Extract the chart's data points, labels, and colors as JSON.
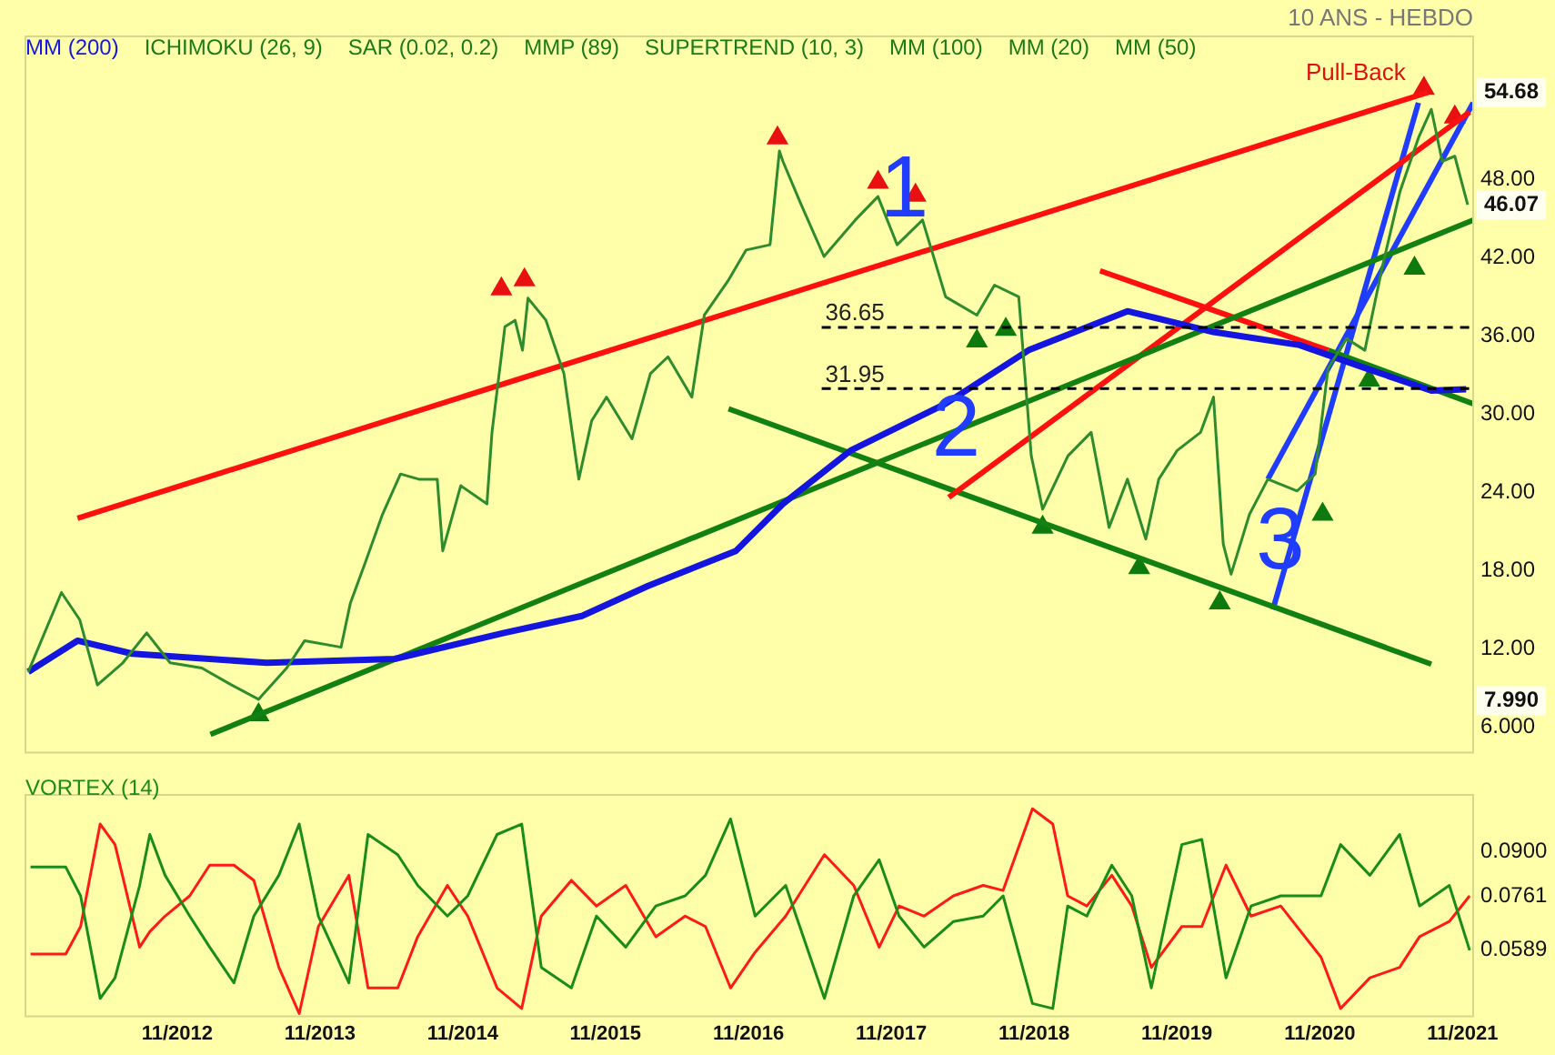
{
  "chart_data": [
    {
      "type": "line",
      "subtitle": "10 ANS - HEBDO",
      "legend": "top left",
      "tick_labels": "y",
      "annotations": [
        "ICHIMOKU (26, 9)",
        "SAR (0.02, 0.2)",
        "MMP (89)",
        "SUPERTREND (10, 3)",
        "MM (100)",
        "MM (20)",
        "MM (50)",
        {
          "text": "1",
          "x": "2017-11-16",
          "y": 42.0
        },
        {
          "text": "2",
          "x": "2018-03-28",
          "y": 23.6
        },
        {
          "text": "3",
          "x": "2020-07-04",
          "y": 15.0
        },
        {
          "text": "Pull-Back",
          "x": "2021-07-25",
          "y": 55.0
        },
        {
          "text": "54.68",
          "y": 54.68
        },
        {
          "text": "46.07",
          "y": 46.07
        },
        {
          "text": "7.990",
          "y": 7.99
        }
      ],
      "x": [
        "2011-10-17",
        "2012-01-10",
        "2012-02-26",
        "2012-04-11",
        "2012-06-15",
        "2012-08-15",
        "2012-10-14",
        "2013-01-03",
        "2013-03-20",
        "2013-05-28",
        "2013-08-08",
        "2013-09-23",
        "2013-12-25",
        "2014-01-18",
        "2014-02-25",
        "2014-04-10",
        "2014-05-26",
        "2014-07-12",
        "2014-08-28",
        "2014-09-11",
        "2014-10-27",
        "2015-01-02",
        "2015-01-15",
        "2015-02-17",
        "2015-03-15",
        "2015-04-03",
        "2015-04-17",
        "2015-06-02",
        "2015-07-18",
        "2015-08-25",
        "2015-09-27",
        "2015-11-04",
        "2016-01-08",
        "2016-02-24",
        "2016-04-09",
        "2016-06-09",
        "2016-07-11",
        "2016-09-11",
        "2016-10-26",
        "2016-12-26",
        "2017-01-19",
        "2017-01-28",
        "2017-03-14",
        "2017-05-13",
        "2017-08-01",
        "2017-09-28",
        "2017-11-16",
        "2018-01-20",
        "2018-03-20",
        "2018-06-08",
        "2018-07-23",
        "2018-09-23",
        "2018-10-25",
        "2018-11-23",
        "2019-01-27",
        "2019-03-27",
        "2019-05-12",
        "2019-06-28",
        "2019-08-14",
        "2019-09-16",
        "2019-11-02",
        "2020-01-01",
        "2020-02-03",
        "2020-02-28",
        "2020-03-19",
        "2020-05-05",
        "2020-06-21",
        "2020-09-04",
        "2020-10-20",
        "2020-11-22",
        "2021-01-08",
        "2021-02-24",
        "2021-04-09",
        "2021-05-25",
        "2021-07-11",
        "2021-08-13",
        "2021-09-10",
        "2021-10-12",
        "2021-11-14"
      ],
      "xlim": [
        "2011-10-10",
        "2021-11-28"
      ],
      "ylim": [
        4,
        59
      ],
      "yticks": [
        {
          "value": 6,
          "label": "6.000"
        },
        {
          "value": 12,
          "label": "12.00"
        },
        {
          "value": 18,
          "label": "18.00"
        },
        {
          "value": 24,
          "label": "24.00"
        },
        {
          "value": 30,
          "label": "30.00"
        },
        {
          "value": 36,
          "label": "36.00"
        },
        {
          "value": 42,
          "label": "42.00"
        },
        {
          "value": 48,
          "label": "48.00"
        }
      ],
      "ref_lines": [
        {
          "axis": "y",
          "value": 36.65,
          "label": "36.65",
          "color": "#000000",
          "line_style": "dashed"
        },
        {
          "axis": "y",
          "value": 31.95,
          "label": "31.95",
          "color": "#000000",
          "line_style": "dashed"
        }
      ],
      "series": [
        {
          "color": "#2e8b2e",
          "values": [
            10.2,
            16.3,
            14.2,
            9.2,
            10.9,
            13.2,
            10.9,
            10.5,
            9.2,
            8.1,
            10.5,
            12.6,
            12.1,
            15.5,
            18.6,
            22.3,
            25.4,
            25.0,
            25.0,
            19.5,
            24.5,
            23.1,
            28.6,
            36.7,
            37.2,
            34.9,
            38.9,
            37.2,
            33.1,
            25.0,
            29.5,
            31.3,
            28.1,
            33.1,
            34.4,
            31.3,
            37.6,
            40.3,
            42.6,
            43.0,
            50.2,
            49.4,
            46.2,
            42.1,
            44.9,
            46.7,
            43.0,
            44.9,
            39.0,
            37.6,
            39.9,
            39.0,
            26.8,
            22.7,
            26.8,
            28.6,
            21.3,
            25.0,
            20.4,
            25.0,
            27.2,
            28.6,
            31.3,
            20.0,
            17.7,
            22.3,
            25.0,
            24.1,
            25.4,
            33.5,
            35.8,
            34.9,
            41.2,
            47.1,
            51.2,
            53.4,
            49.4,
            49.8,
            46.07
          ]
        },
        {
          "name": "MM (200)",
          "color": "#1515e0",
          "x": [
            "2011-10-17",
            "2012-02-20",
            "2012-07-09",
            "2013-06-18",
            "2014-05-11",
            "2015-02-15",
            "2015-09-02",
            "2016-02-18",
            "2016-09-30",
            "2017-01-28",
            "2017-07-20",
            "2018-03-20",
            "2018-10-18",
            "2019-06-28",
            "2020-02-03",
            "2020-09-10",
            "2021-02-28",
            "2021-08-13",
            "2021-11-10"
          ],
          "values": [
            10.2,
            12.6,
            11.6,
            10.9,
            11.2,
            13.2,
            14.5,
            16.8,
            19.5,
            23.1,
            27.2,
            30.8,
            34.9,
            37.9,
            36.3,
            35.3,
            33.5,
            31.8,
            31.9
          ]
        },
        {
          "color": "#ff1010",
          "x": [
            "2012-02-20",
            "2021-08-04"
          ],
          "values": [
            22.0,
            54.7
          ]
        },
        {
          "color": "#138013",
          "x": [
            "2013-01-25",
            "2021-11-28"
          ],
          "values": [
            5.4,
            44.9
          ]
        },
        {
          "color": "#ff1010",
          "x": [
            "2018-03-28",
            "2021-11-19"
          ],
          "values": [
            23.6,
            53.2
          ]
        },
        {
          "color": "#138013",
          "x": [
            "2016-09-11",
            "2021-08-13"
          ],
          "values": [
            30.4,
            10.8
          ]
        },
        {
          "color": "#ff1010",
          "x": [
            "2019-04-19",
            "2020-11-22"
          ],
          "values": [
            41.0,
            34.9
          ]
        },
        {
          "color": "#138013",
          "x": [
            "2020-11-22",
            "2021-11-28"
          ],
          "values": [
            34.9,
            30.8
          ]
        },
        {
          "color": "#1f3cff",
          "x": [
            "2020-07-04",
            "2021-07-11"
          ],
          "values": [
            15.0,
            53.9
          ]
        },
        {
          "color": "#1f3cff",
          "x": [
            "2020-06-21",
            "2021-11-28"
          ],
          "values": [
            25.0,
            53.9
          ]
        },
        {
          "type": "scatter",
          "marker": "triangle",
          "color": "#e81010",
          "x": [
            "2015-02-08",
            "2015-04-08",
            "2017-01-14",
            "2017-09-28",
            "2018-01-02",
            "2021-07-25",
            "2021-10-12"
          ],
          "values": [
            39.6,
            40.3,
            51.2,
            47.8,
            46.8,
            55.0,
            52.8
          ]
        },
        {
          "type": "scatter",
          "marker": "triangle",
          "color": "#0e7a0e",
          "x": [
            "2013-05-28",
            "2018-06-08",
            "2018-08-21",
            "2018-11-23",
            "2019-07-28",
            "2020-02-19",
            "2020-11-08",
            "2021-03-07",
            "2021-07-01"
          ],
          "values": [
            6.9,
            35.6,
            36.5,
            21.3,
            18.2,
            15.5,
            22.3,
            32.6,
            41.2
          ]
        }
      ]
    },
    {
      "type": "line",
      "title": "VORTEX (14)",
      "x": [
        "2011-10-23",
        "2012-01-21",
        "2012-02-28",
        "2012-04-18",
        "2012-05-26",
        "2012-07-28",
        "2012-08-23",
        "2012-10-01",
        "2012-12-03",
        "2013-01-23",
        "2013-03-26",
        "2013-05-16",
        "2013-07-19",
        "2013-09-09",
        "2013-10-28",
        "2014-01-14",
        "2014-03-04",
        "2014-05-19",
        "2014-07-09",
        "2014-09-23",
        "2014-11-14",
        "2015-01-28",
        "2015-04-01",
        "2015-05-21",
        "2015-08-06",
        "2015-10-09",
        "2015-12-23",
        "2016-03-09",
        "2016-05-23",
        "2016-07-14",
        "2016-09-16",
        "2016-11-18",
        "2017-02-04",
        "2017-05-14",
        "2017-07-28",
        "2017-10-01",
        "2017-11-21",
        "2018-01-24",
        "2018-04-09",
        "2018-06-24",
        "2018-08-14",
        "2018-10-28",
        "2018-12-19",
        "2019-01-26",
        "2019-03-16",
        "2019-05-19",
        "2019-07-09",
        "2019-08-28",
        "2019-11-14",
        "2020-01-04",
        "2020-03-06",
        "2020-05-09",
        "2020-07-24",
        "2020-11-04",
        "2020-12-24",
        "2021-03-09",
        "2021-05-24",
        "2021-07-14",
        "2021-09-28",
        "2021-11-19"
      ],
      "xlim": [
        "2011-10-10",
        "2021-11-28"
      ],
      "xticks": [
        {
          "value": "2012-11",
          "label": "11/2012"
        },
        {
          "value": "2013-11",
          "label": "11/2013"
        },
        {
          "value": "2014-11",
          "label": "11/2014"
        },
        {
          "value": "2015-11",
          "label": "11/2015"
        },
        {
          "value": "2016-11",
          "label": "11/2016"
        },
        {
          "value": "2017-11",
          "label": "11/2017"
        },
        {
          "value": "2018-11",
          "label": "11/2018"
        },
        {
          "value": "2019-11",
          "label": "11/2019"
        },
        {
          "value": "2020-11",
          "label": "11/2020"
        },
        {
          "value": "2021-11",
          "label": "11/2021"
        }
      ],
      "ylim": [
        0.038,
        0.108
      ],
      "yticks": [
        {
          "value": 0.0589,
          "label": "0.0589"
        },
        {
          "value": 0.0761,
          "label": "0.0761"
        },
        {
          "value": 0.09,
          "label": "0.0900"
        }
      ],
      "series": [
        {
          "color": "#1a8c1a",
          "values": [
            0.0852,
            0.0852,
            0.0761,
            0.0437,
            0.0502,
            0.0794,
            0.0955,
            0.0826,
            0.0697,
            0.0599,
            0.0486,
            0.0697,
            0.0826,
            0.0988,
            0.0697,
            0.0486,
            0.0955,
            0.0891,
            0.0794,
            0.0697,
            0.0761,
            0.0955,
            0.0988,
            0.0535,
            0.047,
            0.0697,
            0.0599,
            0.0729,
            0.0761,
            0.0826,
            0.1004,
            0.0697,
            0.0794,
            0.0437,
            0.0761,
            0.0875,
            0.0697,
            0.0599,
            0.068,
            0.0697,
            0.0761,
            0.0421,
            0.0405,
            0.0729,
            0.0697,
            0.0858,
            0.0761,
            0.047,
            0.0923,
            0.0939,
            0.0502,
            0.0729,
            0.0761,
            0.0761,
            0.0923,
            0.0826,
            0.0955,
            0.0729,
            0.0794,
            0.0589
          ]
        },
        {
          "color": "#ff1a1a",
          "values": [
            0.0577,
            0.0577,
            0.0664,
            0.0988,
            0.0923,
            0.0599,
            0.0648,
            0.0697,
            0.0761,
            0.0858,
            0.0858,
            0.081,
            0.0535,
            0.0389,
            0.0664,
            0.0826,
            0.047,
            0.047,
            0.0632,
            0.0794,
            0.0697,
            0.047,
            0.0405,
            0.0697,
            0.081,
            0.0729,
            0.0794,
            0.0632,
            0.0697,
            0.0664,
            0.047,
            0.0583,
            0.0697,
            0.0891,
            0.0794,
            0.0599,
            0.0729,
            0.0697,
            0.0761,
            0.0794,
            0.0778,
            0.1036,
            0.0988,
            0.0761,
            0.0729,
            0.0826,
            0.0729,
            0.0535,
            0.0664,
            0.0664,
            0.0858,
            0.0697,
            0.0729,
            0.0567,
            0.0405,
            0.0502,
            0.0535,
            0.0632,
            0.068,
            0.0761
          ]
        }
      ]
    }
  ]
}
